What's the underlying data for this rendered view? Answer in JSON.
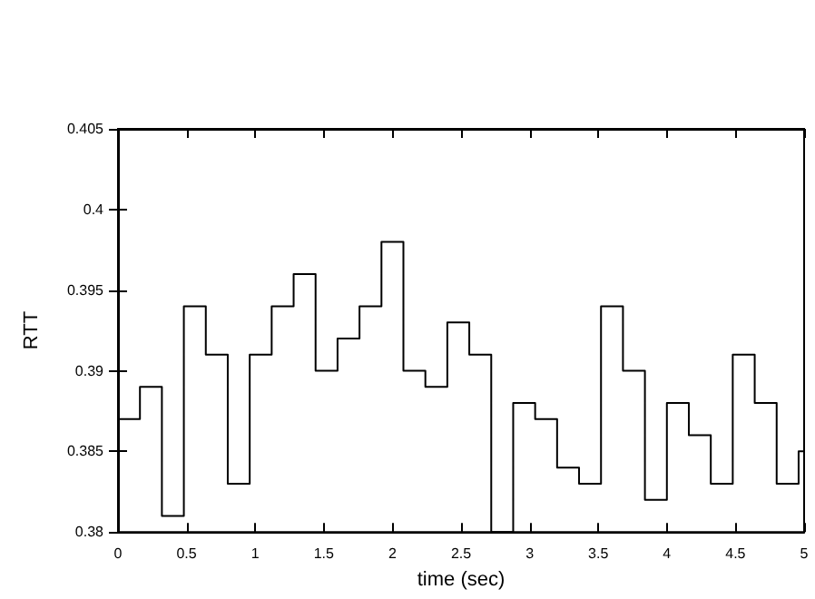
{
  "chart_data": {
    "type": "step",
    "xlabel": "time (sec)",
    "ylabel": "RTT",
    "x": [
      0,
      0.16,
      0.32,
      0.48,
      0.64,
      0.8,
      0.96,
      1.12,
      1.28,
      1.44,
      1.6,
      1.76,
      1.92,
      2.08,
      2.24,
      2.4,
      2.56,
      2.72,
      2.88,
      3.04,
      3.2,
      3.36,
      3.52,
      3.68,
      3.84,
      4.0,
      4.16,
      4.32,
      4.48,
      4.64,
      4.8,
      4.96,
      5
    ],
    "series": [
      {
        "color": "#000000",
        "values": [
          0.387,
          0.389,
          0.381,
          0.394,
          0.391,
          0.383,
          0.391,
          0.394,
          0.396,
          0.39,
          0.392,
          0.394,
          0.398,
          0.39,
          0.389,
          0.393,
          0.391,
          0.38,
          0.388,
          0.387,
          0.384,
          0.383,
          0.394,
          0.39,
          0.382,
          0.388,
          0.386,
          0.383,
          0.391,
          0.388,
          0.383,
          0.385,
          0.385
        ]
      }
    ],
    "xlim": [
      0,
      5
    ],
    "xticks": [
      0,
      0.5,
      1,
      1.5,
      2,
      2.5,
      3,
      3.5,
      4,
      4.5,
      5
    ],
    "ylim": [
      0.38,
      0.405
    ],
    "yticks": [
      0.38,
      0.385,
      0.39,
      0.395,
      0.4,
      0.405
    ],
    "grid": false,
    "marker": "none",
    "line_style": "solid"
  }
}
